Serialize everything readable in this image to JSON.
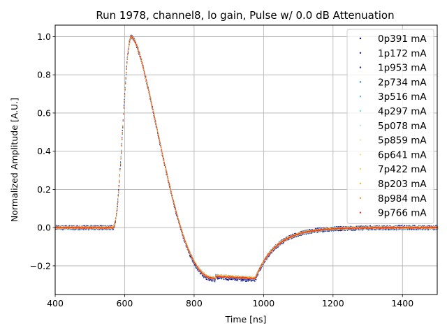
{
  "chart_data": {
    "type": "scatter",
    "title": "Run 1978, channel8, lo gain, Pulse w/ 0.0 dB Attenuation",
    "xlabel": "Time [ns]",
    "ylabel": "Normalized Amplitude [A.U.]",
    "xlim": [
      400,
      1500
    ],
    "ylim": [
      -0.35,
      1.06
    ],
    "grid": true,
    "legend_position": "top-right",
    "x_ticks": [
      400,
      600,
      800,
      1000,
      1200,
      1400
    ],
    "y_ticks": [
      -0.2,
      0.0,
      0.2,
      0.4,
      0.6,
      0.8,
      1.0
    ],
    "x_tick_labels": [
      "400",
      "600",
      "800",
      "1000",
      "1200",
      "1400"
    ],
    "y_tick_labels": [
      "−0.2",
      "0.0",
      "0.2",
      "0.4",
      "0.6",
      "0.8",
      "1.0"
    ],
    "series": [
      {
        "name": "0p391 mA",
        "color": "#00008b",
        "undershoot": -0.272,
        "noise": 0.012
      },
      {
        "name": "1p172 mA",
        "color": "#1a1aa8",
        "undershoot": -0.27,
        "noise": 0.011
      },
      {
        "name": "1p953 mA",
        "color": "#2222b4",
        "undershoot": -0.268,
        "noise": 0.01
      },
      {
        "name": "2p734 mA",
        "color": "#1f7ec4",
        "undershoot": -0.266,
        "noise": 0.009
      },
      {
        "name": "3p516 mA",
        "color": "#4ab6dd",
        "undershoot": -0.265,
        "noise": 0.008
      },
      {
        "name": "4p297 mA",
        "color": "#6fe0c8",
        "undershoot": -0.264,
        "noise": 0.007
      },
      {
        "name": "5p078 mA",
        "color": "#a8f0d8",
        "undershoot": -0.264,
        "noise": 0.006
      },
      {
        "name": "5p859 mA",
        "color": "#f2e3a6",
        "undershoot": -0.264,
        "noise": 0.006
      },
      {
        "name": "6p641 mA",
        "color": "#f8e07a",
        "undershoot": -0.264,
        "noise": 0.005
      },
      {
        "name": "7p422 mA",
        "color": "#f9d24a",
        "undershoot": -0.264,
        "noise": 0.005
      },
      {
        "name": "8p203 mA",
        "color": "#f4b23a",
        "undershoot": -0.265,
        "noise": 0.004
      },
      {
        "name": "8p984 mA",
        "color": "#f08a2c",
        "undershoot": -0.266,
        "noise": 0.004
      },
      {
        "name": "9p766 mA",
        "color": "#ee3a1e",
        "undershoot": -0.267,
        "noise": 0.004
      }
    ],
    "pulse_shape": {
      "baseline": 0.0,
      "rise_start_ns": 565,
      "peak_ns": 618,
      "peak_value": 1.0,
      "zero_crossing_ns": 735,
      "undershoot_plateau_start_ns": 860,
      "undershoot_plateau_end_ns": 975,
      "recovery_end_ns": 1200
    }
  }
}
